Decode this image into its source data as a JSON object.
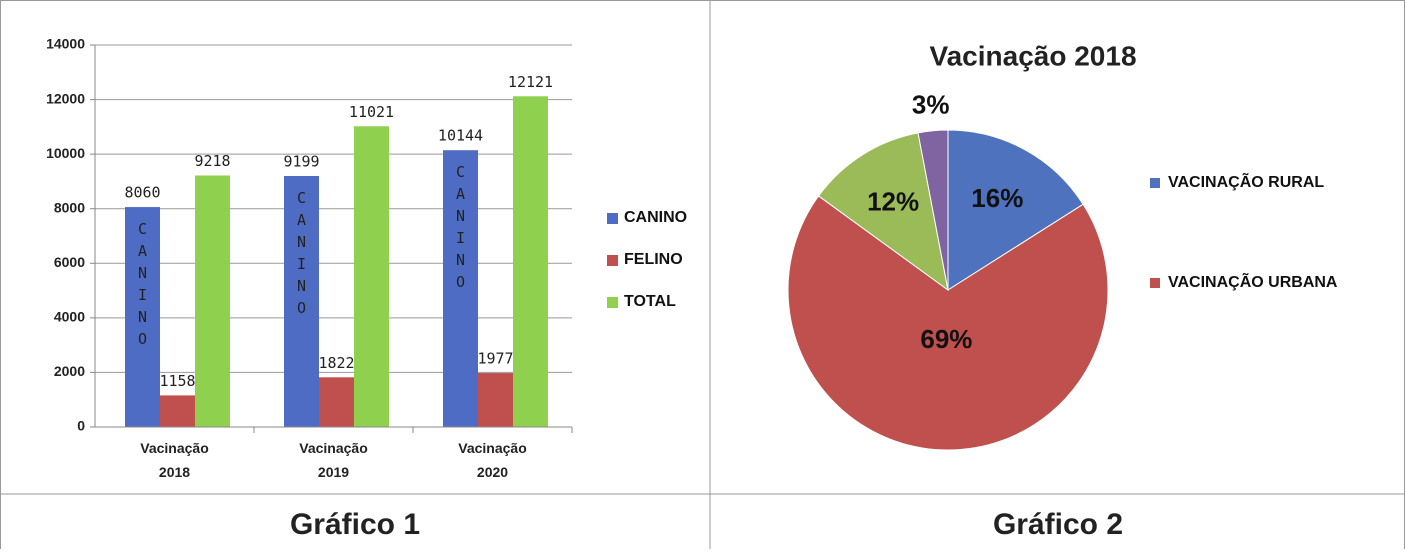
{
  "chart_data": [
    {
      "type": "bar",
      "caption": "Gráfico 1",
      "categories": [
        "Vacinação 2018",
        "Vacinação 2019",
        "Vacinação 2020"
      ],
      "series": [
        {
          "name": "CANINO",
          "color": "#4f6cc4",
          "values": [
            8060,
            9199,
            10144
          ]
        },
        {
          "name": "FELINO",
          "color": "#c0504d",
          "values": [
            1158,
            1822,
            1977
          ]
        },
        {
          "name": "TOTAL",
          "color": "#8fd14f",
          "values": [
            9218,
            11021,
            12121
          ]
        }
      ],
      "ylim": [
        0,
        14000
      ],
      "yticks": [
        0,
        2000,
        4000,
        6000,
        8000,
        10000,
        12000,
        14000
      ],
      "grid": true
    },
    {
      "type": "pie",
      "caption": "Gráfico 2",
      "title": "Vacinação 2018",
      "labels": [
        "VACINAÇÃO RURAL",
        "VACINAÇÃO URBANA",
        null,
        null
      ],
      "values": [
        16,
        69,
        12,
        3
      ],
      "value_labels": [
        "16%",
        "69%",
        "12%",
        "3%"
      ],
      "colors": [
        "#4f72be",
        "#c0504d",
        "#9bbb59",
        "#8064a2"
      ]
    }
  ]
}
